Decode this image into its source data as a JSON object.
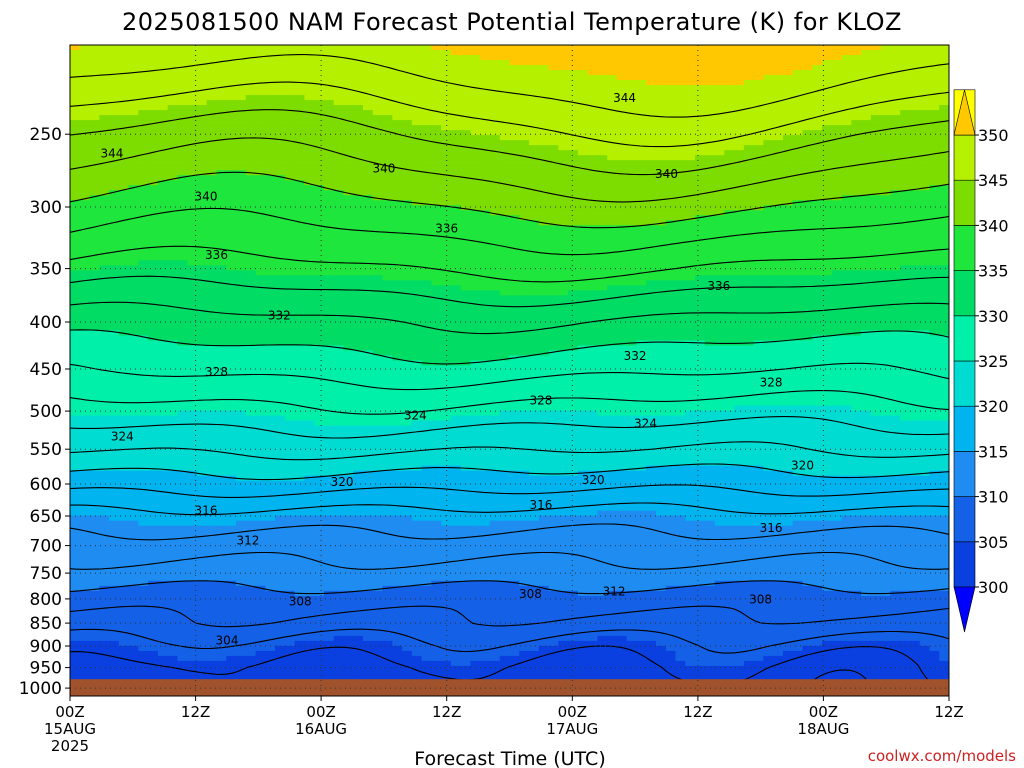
{
  "chart_data": {
    "type": "heatmap",
    "title": "2025081500 NAM Forecast Potential Temperature (K) for KLOZ",
    "xlabel": "Forecast Time (UTC)",
    "ylabel": "",
    "credit": "coolwx.com/models",
    "y_scale": "log-pressure",
    "y_range_hPa": [
      1000,
      200
    ],
    "y_ticks": [
      "250",
      "300",
      "350",
      "400",
      "450",
      "500",
      "550",
      "600",
      "650",
      "700",
      "750",
      "800",
      "850",
      "900",
      "950",
      "1000"
    ],
    "x_ticks": [
      {
        "top": "00Z",
        "sub": "15AUG",
        "sub2": "2025"
      },
      {
        "top": "12Z",
        "sub": "",
        "sub2": ""
      },
      {
        "top": "00Z",
        "sub": "16AUG",
        "sub2": ""
      },
      {
        "top": "12Z",
        "sub": "",
        "sub2": ""
      },
      {
        "top": "00Z",
        "sub": "17AUG",
        "sub2": ""
      },
      {
        "top": "12Z",
        "sub": "",
        "sub2": ""
      },
      {
        "top": "00Z",
        "sub": "18AUG",
        "sub2": ""
      },
      {
        "top": "12Z",
        "sub": "",
        "sub2": ""
      }
    ],
    "forecast_hours": [
      0,
      12,
      24,
      36,
      48,
      60,
      72,
      84
    ],
    "colorbar": {
      "levels": [
        300,
        305,
        310,
        315,
        320,
        325,
        330,
        335,
        340,
        345,
        350
      ],
      "labels": [
        "300",
        "305",
        "310",
        "315",
        "320",
        "325",
        "330",
        "335",
        "340",
        "345",
        "350"
      ],
      "colors": [
        "#0000ff",
        "#0a3fe0",
        "#1460e6",
        "#1e8cf0",
        "#00b4f0",
        "#00dcd2",
        "#00f0aa",
        "#00dc64",
        "#1ee63c",
        "#7ddc00",
        "#b4f000",
        "#ffff00",
        "#ffc800"
      ],
      "extend": "both"
    },
    "contour_levels": [
      300,
      302,
      304,
      306,
      308,
      310,
      312,
      314,
      316,
      318,
      320,
      322,
      324,
      326,
      328,
      330,
      332,
      334,
      336,
      338,
      340,
      342,
      344,
      346,
      348
    ],
    "contour_labels": [
      {
        "text": "344",
        "hour": 4,
        "p": 262
      },
      {
        "text": "344",
        "hour": 53,
        "p": 228
      },
      {
        "text": "340",
        "hour": 13,
        "p": 292
      },
      {
        "text": "340",
        "hour": 30,
        "p": 272
      },
      {
        "text": "340",
        "hour": 57,
        "p": 276
      },
      {
        "text": "336",
        "hour": 14,
        "p": 338
      },
      {
        "text": "336",
        "hour": 36,
        "p": 316
      },
      {
        "text": "336",
        "hour": 62,
        "p": 365
      },
      {
        "text": "332",
        "hour": 20,
        "p": 393
      },
      {
        "text": "332",
        "hour": 54,
        "p": 435
      },
      {
        "text": "328",
        "hour": 14,
        "p": 453
      },
      {
        "text": "328",
        "hour": 45,
        "p": 486
      },
      {
        "text": "328",
        "hour": 67,
        "p": 465
      },
      {
        "text": "324",
        "hour": 5,
        "p": 532
      },
      {
        "text": "324",
        "hour": 33,
        "p": 505
      },
      {
        "text": "324",
        "hour": 55,
        "p": 515
      },
      {
        "text": "320",
        "hour": 26,
        "p": 596
      },
      {
        "text": "320",
        "hour": 50,
        "p": 593
      },
      {
        "text": "320",
        "hour": 70,
        "p": 572
      },
      {
        "text": "316",
        "hour": 13,
        "p": 640
      },
      {
        "text": "316",
        "hour": 45,
        "p": 632
      },
      {
        "text": "316",
        "hour": 67,
        "p": 669
      },
      {
        "text": "312",
        "hour": 17,
        "p": 690
      },
      {
        "text": "312",
        "hour": 52,
        "p": 784
      },
      {
        "text": "308",
        "hour": 22,
        "p": 804
      },
      {
        "text": "308",
        "hour": 44,
        "p": 789
      },
      {
        "text": "308",
        "hour": 66,
        "p": 800
      },
      {
        "text": "304",
        "hour": 15,
        "p": 887
      }
    ],
    "surface_p_hPa": 978,
    "ground_color": "#a0522d",
    "grid": true,
    "legend": "right"
  }
}
